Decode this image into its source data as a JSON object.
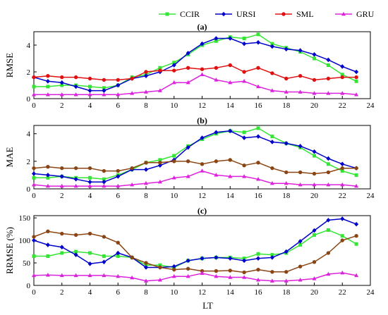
{
  "chart_data": [
    {
      "type": "line",
      "title": "(a)",
      "xlabel": "",
      "ylabel": "RMSE",
      "x": [
        0,
        1,
        2,
        3,
        4,
        5,
        6,
        7,
        8,
        9,
        10,
        11,
        12,
        13,
        14,
        15,
        16,
        17,
        18,
        19,
        20,
        21,
        22,
        23
      ],
      "xlim": [
        0,
        24
      ],
      "ylim": [
        0,
        5
      ],
      "xticks": [
        "0",
        "2",
        "4",
        "6",
        "8",
        "10",
        "12",
        "14",
        "16",
        "18",
        "20",
        "22",
        "24"
      ],
      "yticks": [
        "0",
        "2",
        "4"
      ],
      "series": [
        {
          "name": "CCIR",
          "color": "#33e633",
          "values": [
            0.9,
            0.9,
            1.0,
            1.0,
            0.9,
            0.8,
            1.0,
            1.6,
            1.8,
            2.3,
            2.7,
            3.3,
            4.0,
            4.3,
            4.6,
            4.5,
            4.8,
            4.1,
            3.8,
            3.5,
            3.0,
            2.5,
            1.8,
            1.3
          ]
        },
        {
          "name": "URSI",
          "color": "#0000cc",
          "values": [
            1.6,
            1.3,
            1.2,
            0.9,
            0.6,
            0.6,
            1.0,
            1.5,
            1.7,
            2.0,
            2.5,
            3.4,
            4.1,
            4.5,
            4.5,
            4.1,
            4.2,
            3.9,
            3.7,
            3.6,
            3.3,
            2.9,
            2.4,
            2.0
          ]
        },
        {
          "name": "SML",
          "color": "#e01010",
          "values": [
            1.6,
            1.7,
            1.6,
            1.6,
            1.5,
            1.4,
            1.4,
            1.5,
            2.0,
            2.1,
            2.1,
            2.3,
            2.2,
            2.3,
            2.5,
            2.0,
            2.3,
            1.9,
            1.5,
            1.7,
            1.4,
            1.5,
            1.6,
            1.6
          ]
        },
        {
          "name": "GRU",
          "color": "#dd22dd",
          "values": [
            0.3,
            0.3,
            0.3,
            0.3,
            0.3,
            0.3,
            0.3,
            0.4,
            0.5,
            0.6,
            1.2,
            1.2,
            1.8,
            1.4,
            1.2,
            1.3,
            0.9,
            0.6,
            0.5,
            0.5,
            0.4,
            0.4,
            0.4,
            0.3
          ]
        }
      ]
    },
    {
      "type": "line",
      "title": "(b)",
      "xlabel": "",
      "ylabel": "MAE",
      "x": [
        0,
        1,
        2,
        3,
        4,
        5,
        6,
        7,
        8,
        9,
        10,
        11,
        12,
        13,
        14,
        15,
        16,
        17,
        18,
        19,
        20,
        21,
        22,
        23
      ],
      "xlim": [
        0,
        24
      ],
      "ylim": [
        0,
        4.6
      ],
      "xticks": [
        "0",
        "2",
        "4",
        "6",
        "8",
        "10",
        "12",
        "14",
        "16",
        "18",
        "20",
        "22",
        "24"
      ],
      "yticks": [
        "0",
        "2",
        "4"
      ],
      "series": [
        {
          "name": "CCIR",
          "color": "#33e633",
          "values": [
            0.8,
            0.8,
            0.9,
            0.8,
            0.8,
            0.7,
            1.0,
            1.4,
            1.9,
            2.1,
            2.4,
            3.1,
            3.6,
            4.0,
            4.2,
            4.1,
            4.4,
            3.8,
            3.3,
            3.0,
            2.4,
            1.8,
            1.3,
            1.0
          ]
        },
        {
          "name": "URSI",
          "color": "#0000cc",
          "values": [
            1.1,
            1.0,
            0.9,
            0.7,
            0.5,
            0.5,
            0.9,
            1.4,
            1.4,
            1.7,
            2.1,
            3.0,
            3.7,
            4.1,
            4.2,
            3.7,
            3.8,
            3.4,
            3.3,
            3.1,
            2.7,
            2.2,
            1.8,
            1.5
          ]
        },
        {
          "name": "SML",
          "color": "#8b4513",
          "values": [
            1.5,
            1.6,
            1.5,
            1.5,
            1.5,
            1.3,
            1.3,
            1.5,
            1.9,
            1.9,
            2.0,
            2.0,
            1.8,
            2.0,
            2.1,
            1.7,
            1.9,
            1.5,
            1.2,
            1.2,
            1.1,
            1.2,
            1.5,
            1.5
          ]
        },
        {
          "name": "GRU",
          "color": "#dd22dd",
          "values": [
            0.3,
            0.2,
            0.2,
            0.2,
            0.2,
            0.2,
            0.2,
            0.3,
            0.4,
            0.5,
            0.8,
            0.9,
            1.3,
            1.0,
            0.9,
            0.9,
            0.7,
            0.4,
            0.4,
            0.3,
            0.3,
            0.3,
            0.3,
            0.2
          ]
        }
      ]
    },
    {
      "type": "line",
      "title": "(c)",
      "xlabel": "LT",
      "ylabel": "RRMSE (%)",
      "x": [
        0,
        1,
        2,
        3,
        4,
        5,
        6,
        7,
        8,
        9,
        10,
        11,
        12,
        13,
        14,
        15,
        16,
        17,
        18,
        19,
        20,
        21,
        22,
        23
      ],
      "xlim": [
        0,
        24
      ],
      "ylim": [
        0,
        155
      ],
      "xticks": [
        "0",
        "2",
        "4",
        "6",
        "8",
        "10",
        "12",
        "14",
        "16",
        "18",
        "20",
        "22",
        "24"
      ],
      "yticks": [
        "0",
        "50",
        "100",
        "150"
      ],
      "series": [
        {
          "name": "CCIR",
          "color": "#33e633",
          "values": [
            65,
            65,
            72,
            75,
            72,
            65,
            65,
            62,
            45,
            45,
            40,
            55,
            60,
            62,
            62,
            60,
            70,
            68,
            72,
            90,
            112,
            123,
            110,
            92
          ]
        },
        {
          "name": "URSI",
          "color": "#0000cc",
          "values": [
            100,
            90,
            85,
            68,
            48,
            52,
            72,
            62,
            40,
            40,
            42,
            55,
            60,
            62,
            60,
            55,
            60,
            62,
            75,
            98,
            122,
            145,
            148,
            136
          ]
        },
        {
          "name": "SML",
          "color": "#8b4513",
          "values": [
            108,
            120,
            115,
            112,
            115,
            108,
            95,
            62,
            50,
            40,
            35,
            37,
            32,
            32,
            33,
            29,
            35,
            30,
            30,
            42,
            52,
            72,
            100,
            110
          ]
        },
        {
          "name": "GRU",
          "color": "#dd22dd",
          "values": [
            22,
            23,
            22,
            22,
            22,
            22,
            20,
            17,
            10,
            12,
            20,
            20,
            27,
            20,
            18,
            18,
            12,
            10,
            10,
            12,
            15,
            25,
            28,
            22
          ]
        }
      ]
    }
  ],
  "legend": [
    {
      "label": "CCIR",
      "color": "#33e633",
      "marker": "square"
    },
    {
      "label": "URSI",
      "color": "#0000cc",
      "marker": "diamond"
    },
    {
      "label": "SML",
      "color": "#e01010",
      "marker": "circle"
    },
    {
      "label": "GRU",
      "color": "#dd22dd",
      "marker": "triangle"
    }
  ]
}
